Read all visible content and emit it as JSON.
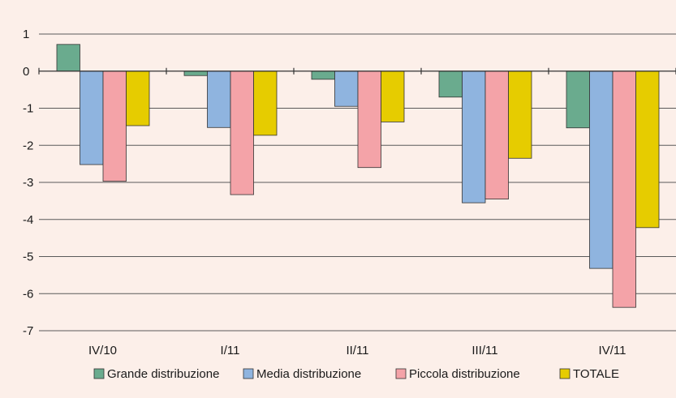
{
  "chart_data": {
    "type": "bar",
    "categories": [
      "IV/10",
      "I/11",
      "II/11",
      "III/11",
      "IV/11"
    ],
    "series": [
      {
        "name": "Grande distribuzione",
        "color": "#6aab8e",
        "values": [
          0.72,
          -0.12,
          -0.22,
          -0.7,
          -1.53
        ]
      },
      {
        "name": "Media distribuzione",
        "color": "#8fb4df",
        "values": [
          -2.52,
          -1.52,
          -0.95,
          -3.55,
          -5.32
        ]
      },
      {
        "name": "Piccola distribuzione",
        "color": "#f4a3a8",
        "values": [
          -2.97,
          -3.33,
          -2.6,
          -3.45,
          -6.37
        ]
      },
      {
        "name": "TOTALE",
        "color": "#e6cc00",
        "values": [
          -1.47,
          -1.73,
          -1.37,
          -2.35,
          -4.22
        ]
      }
    ],
    "yticks": [
      "1",
      "0",
      "-1",
      "-2",
      "-3",
      "-4",
      "-5",
      "-6",
      "-7"
    ],
    "ylim": [
      -7,
      1
    ],
    "grid": true,
    "legend_position": "bottom",
    "background": "#fcefe9"
  }
}
